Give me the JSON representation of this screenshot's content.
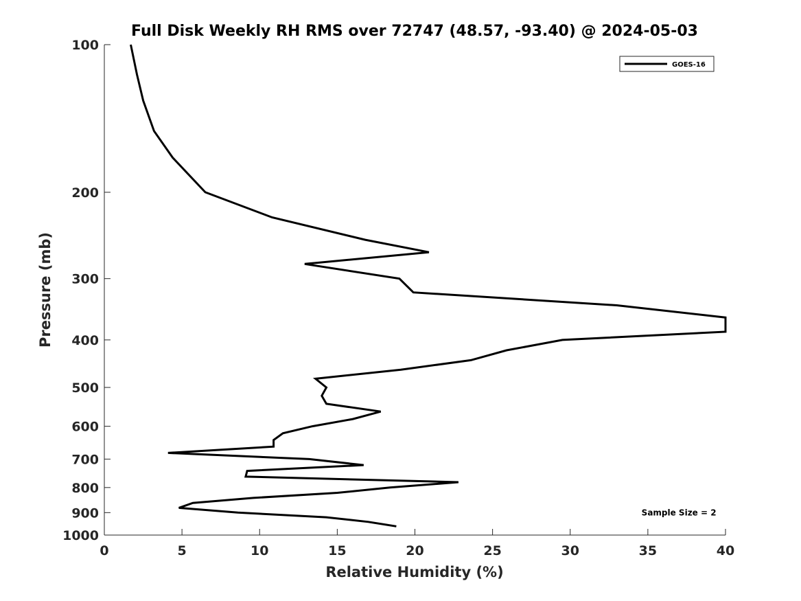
{
  "chart_data": {
    "type": "line",
    "title": "Full Disk Weekly RH RMS over 72747 (48.57, -93.40) @ 2024-05-03",
    "xlabel": "Relative Humidity (%)",
    "ylabel": "Pressure (mb)",
    "xlim": [
      0,
      40
    ],
    "ylim": [
      100,
      1000
    ],
    "y_scale": "log",
    "y_inverted": true,
    "grid": false,
    "legend_position": "top-right",
    "x_ticks": [
      "0",
      "5",
      "10",
      "15",
      "20",
      "25",
      "30",
      "35",
      "40"
    ],
    "y_ticks": [
      "100",
      "200",
      "300",
      "400",
      "500",
      "600",
      "700",
      "800",
      "900",
      "1000"
    ],
    "series": [
      {
        "name": "GOES-16",
        "color": "#000000",
        "points": [
          [
            1.7,
            100
          ],
          [
            2.1,
            115
          ],
          [
            2.5,
            130
          ],
          [
            3.2,
            150
          ],
          [
            4.4,
            170
          ],
          [
            6.5,
            200
          ],
          [
            10.8,
            225
          ],
          [
            16.8,
            250
          ],
          [
            20.9,
            265
          ],
          [
            12.9,
            280
          ],
          [
            19.0,
            300
          ],
          [
            19.9,
            320
          ],
          [
            33.0,
            340
          ],
          [
            40.0,
            360
          ],
          [
            40.0,
            385
          ],
          [
            29.5,
            400
          ],
          [
            25.9,
            420
          ],
          [
            23.6,
            440
          ],
          [
            19.1,
            460
          ],
          [
            13.6,
            480
          ],
          [
            14.3,
            500
          ],
          [
            14.0,
            520
          ],
          [
            14.3,
            540
          ],
          [
            17.8,
            560
          ],
          [
            16.0,
            580
          ],
          [
            13.4,
            600
          ],
          [
            11.5,
            620
          ],
          [
            10.9,
            640
          ],
          [
            10.9,
            660
          ],
          [
            4.1,
            680
          ],
          [
            13.2,
            700
          ],
          [
            16.7,
            720
          ],
          [
            9.2,
            740
          ],
          [
            9.1,
            760
          ],
          [
            22.8,
            780
          ],
          [
            18.4,
            800
          ],
          [
            15.0,
            820
          ],
          [
            9.6,
            840
          ],
          [
            5.7,
            860
          ],
          [
            4.8,
            880
          ],
          [
            8.6,
            900
          ],
          [
            14.3,
            920
          ],
          [
            17.0,
            940
          ],
          [
            18.8,
            960
          ]
        ]
      }
    ],
    "annotations": [
      {
        "text": "Sample Size = 2",
        "x": 37,
        "y": 900
      }
    ]
  }
}
